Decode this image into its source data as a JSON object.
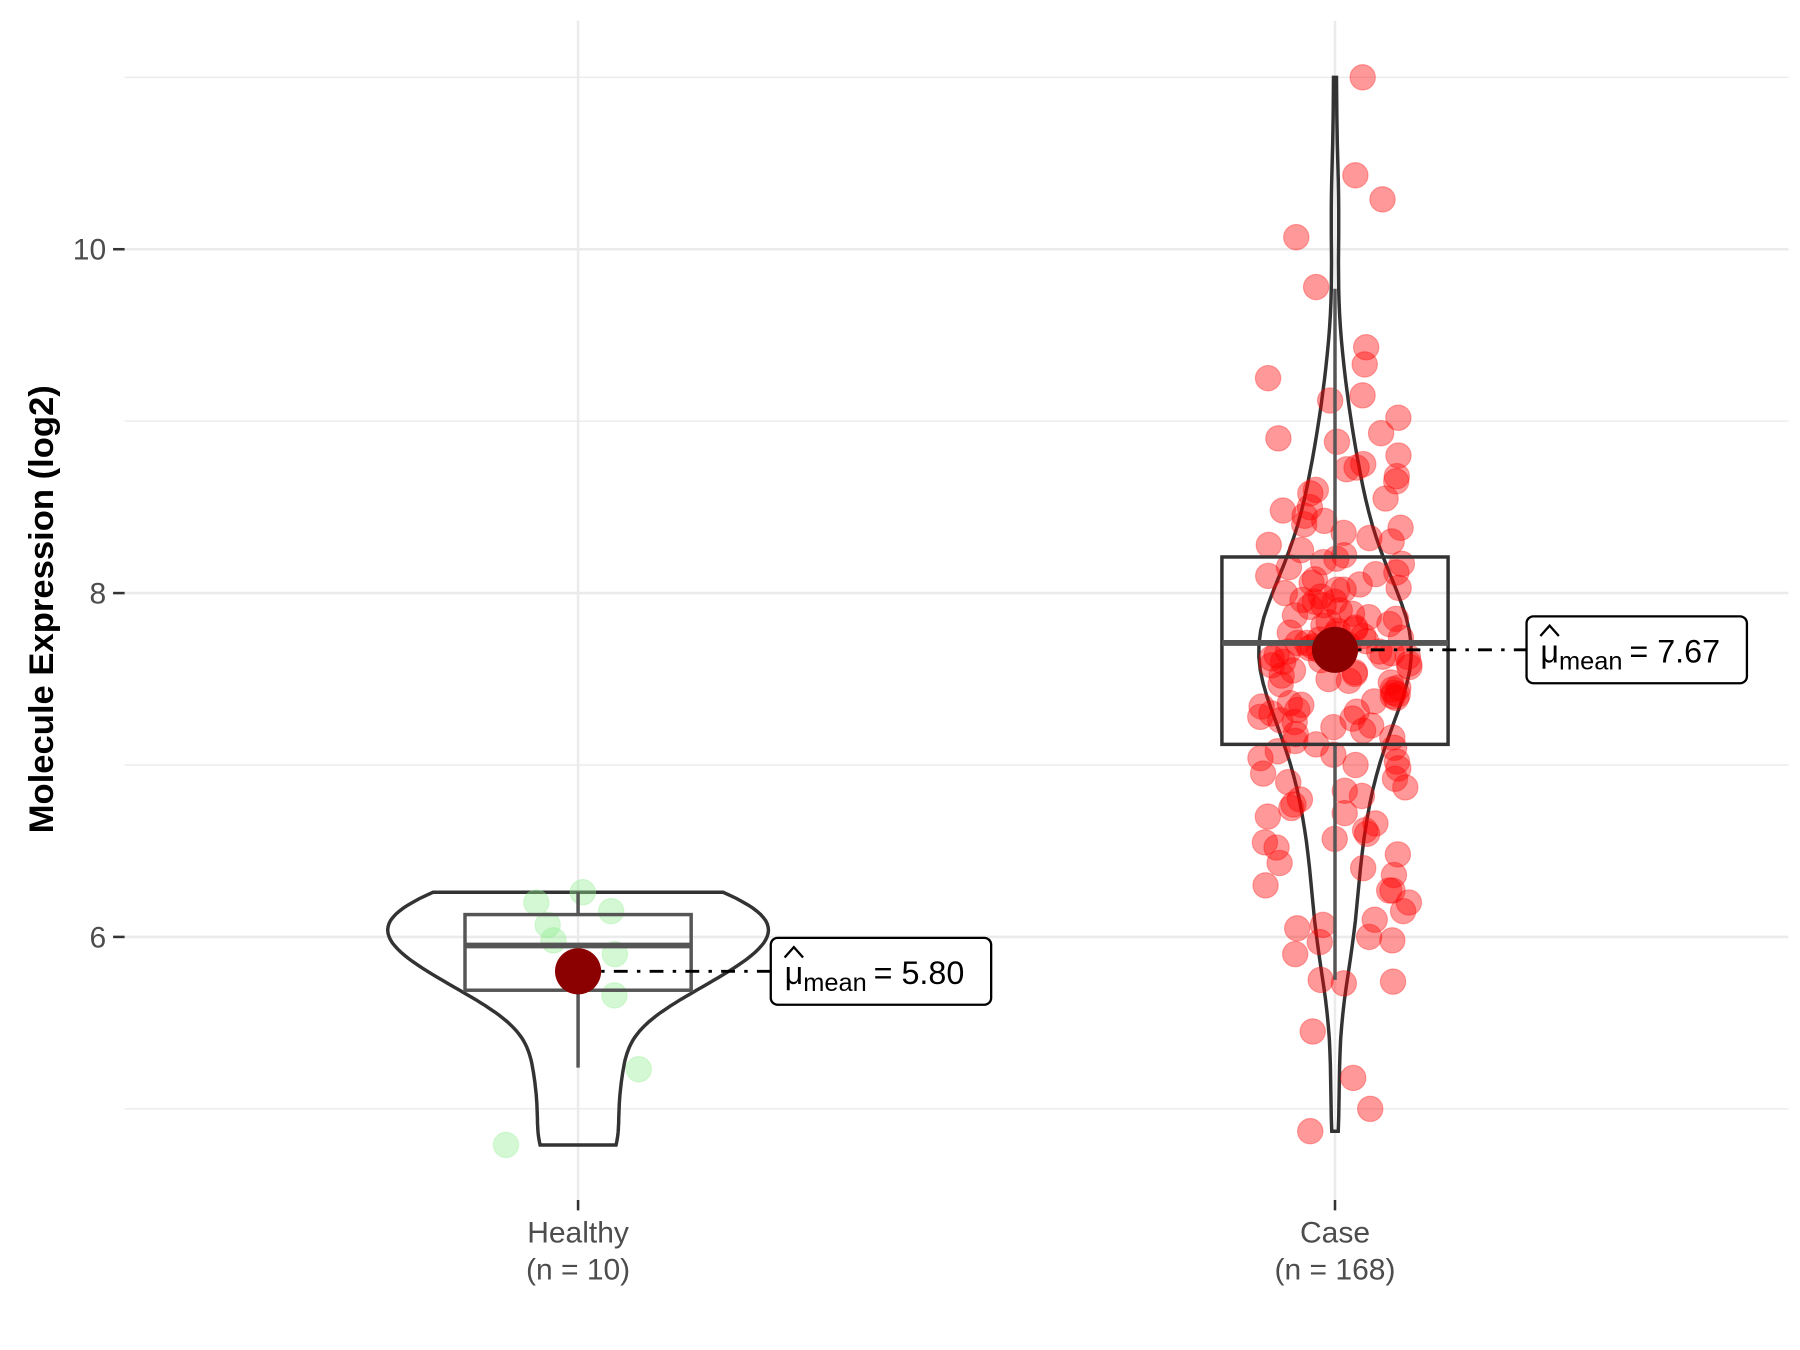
{
  "chart_data": {
    "type": "violin-box-jitter",
    "ylabel": "Molecule Expression (log2)",
    "xlabel": "",
    "ylim": [
      4.6,
      11.3
    ],
    "yticks": [
      6,
      8,
      10
    ],
    "grid": true,
    "categories": [
      {
        "name": "Healthy",
        "n_label": "(n = 10)",
        "color": "#90ee90",
        "points": [
          4.79,
          5.23,
          6.07,
          6.2,
          6.15,
          6.26,
          5.98,
          5.66,
          5.9,
          5.76
        ],
        "box": {
          "lower_whisker": 5.24,
          "q1": 5.69,
          "median": 5.95,
          "q3": 6.13,
          "upper_whisker": 6.26
        },
        "mean": 5.8,
        "mean_label": {
          "symbol": "μ",
          "sub": "mean",
          "text": "= 5.80"
        }
      },
      {
        "name": "Case",
        "n_label": "(n = 168)",
        "color": "#ff0000",
        "points": [
          11.0,
          10.43,
          10.29,
          10.07,
          9.78,
          9.43,
          9.33,
          9.25,
          9.15,
          9.12,
          9.02,
          8.93,
          8.9,
          8.88,
          8.8,
          8.75,
          8.73,
          8.72,
          8.68,
          8.65,
          8.6,
          8.58,
          8.55,
          8.5,
          8.48,
          8.45,
          8.42,
          8.4,
          8.38,
          8.35,
          8.32,
          8.3,
          8.28,
          8.25,
          8.22,
          8.2,
          8.18,
          8.15,
          8.12,
          8.1,
          8.08,
          8.06,
          8.05,
          8.03,
          8.02,
          8.0,
          7.98,
          7.96,
          7.95,
          7.93,
          7.92,
          7.9,
          7.88,
          7.87,
          7.85,
          7.83,
          7.82,
          7.8,
          7.79,
          7.78,
          7.76,
          7.75,
          7.74,
          7.73,
          7.72,
          7.71,
          7.7,
          7.69,
          7.68,
          7.67,
          7.66,
          7.65,
          7.64,
          7.63,
          7.62,
          7.61,
          7.6,
          7.58,
          7.57,
          7.55,
          7.54,
          7.52,
          7.5,
          7.49,
          7.47,
          7.45,
          7.44,
          7.42,
          7.4,
          7.39,
          7.37,
          7.35,
          7.34,
          7.32,
          7.3,
          7.28,
          7.27,
          7.25,
          7.23,
          7.22,
          7.2,
          7.18,
          7.16,
          7.14,
          7.12,
          7.1,
          7.08,
          7.06,
          7.04,
          7.02,
          7.0,
          6.98,
          6.95,
          6.92,
          6.9,
          6.87,
          6.85,
          6.82,
          6.8,
          6.77,
          6.75,
          6.72,
          6.7,
          6.66,
          6.62,
          6.6,
          6.57,
          6.55,
          6.52,
          6.48,
          6.43,
          6.4,
          6.36,
          6.3,
          6.27,
          6.27,
          6.2,
          6.15,
          6.1,
          6.07,
          6.05,
          6.0,
          5.98,
          5.97,
          5.9,
          5.75,
          5.74,
          5.73,
          5.45,
          5.18,
          5.0,
          4.87,
          7.86,
          7.81,
          7.77,
          7.71,
          7.63,
          7.59,
          7.53,
          7.48,
          7.41,
          7.36,
          7.31,
          7.26,
          7.95,
          8.02,
          8.11,
          8.17,
          7.69,
          7.66
        ],
        "box": {
          "lower_whisker": 5.75,
          "q1": 7.12,
          "median": 7.71,
          "q3": 8.21,
          "upper_whisker": 9.77
        },
        "mean": 7.67,
        "mean_label": {
          "symbol": "μ",
          "sub": "mean",
          "text": "= 7.67"
        }
      }
    ]
  }
}
